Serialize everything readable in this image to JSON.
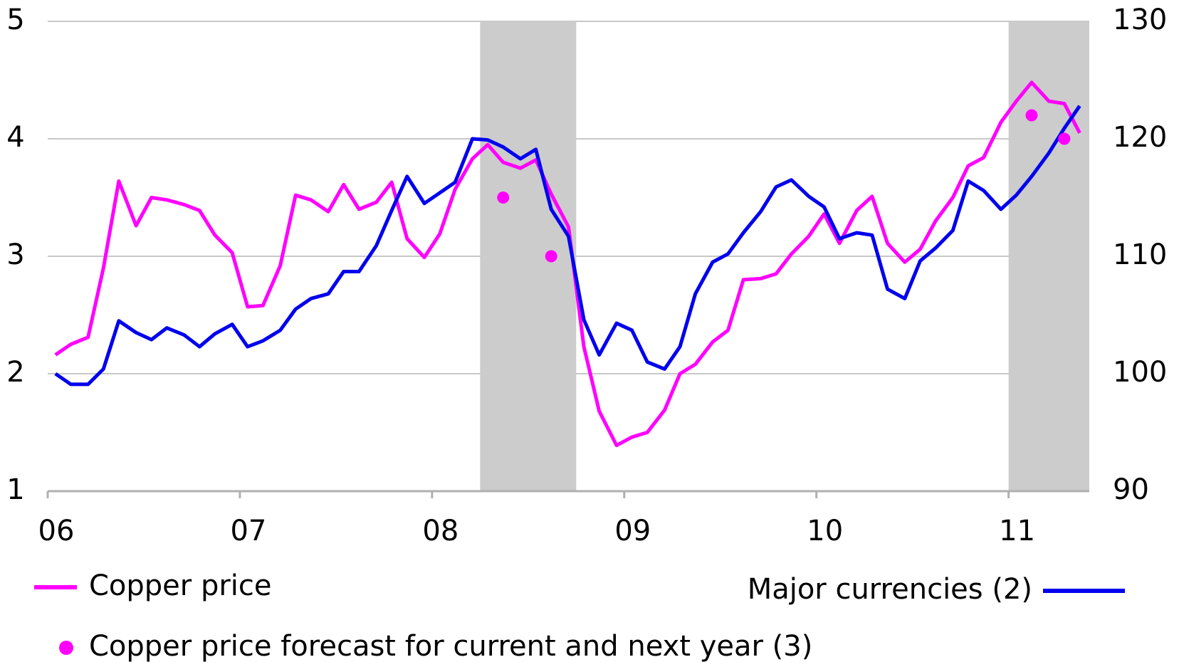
{
  "chart_data": {
    "type": "line",
    "x": [
      6.04,
      6.12,
      6.21,
      6.29,
      6.37,
      6.46,
      6.54,
      6.62,
      6.71,
      6.79,
      6.87,
      6.96,
      7.04,
      7.12,
      7.21,
      7.29,
      7.37,
      7.46,
      7.54,
      7.62,
      7.71,
      7.79,
      7.87,
      7.96,
      8.04,
      8.12,
      8.21,
      8.29,
      8.37,
      8.46,
      8.54,
      8.62,
      8.71,
      8.79,
      8.87,
      8.96,
      9.04,
      9.12,
      9.21,
      9.29,
      9.37,
      9.46,
      9.54,
      9.62,
      9.71,
      9.79,
      9.87,
      9.96,
      10.04,
      10.12,
      10.21,
      10.29,
      10.37,
      10.46,
      10.54,
      10.62,
      10.71,
      10.79,
      10.87,
      10.96,
      11.04,
      11.12,
      11.21,
      11.29,
      11.37
    ],
    "series": [
      {
        "name": "Copper price",
        "color": "#ff00ff",
        "values": [
          2.16,
          2.25,
          2.31,
          2.9,
          3.64,
          3.26,
          3.5,
          3.48,
          3.44,
          3.39,
          3.18,
          3.03,
          2.57,
          2.58,
          2.92,
          3.52,
          3.48,
          3.38,
          3.61,
          3.4,
          3.46,
          3.63,
          3.15,
          2.99,
          3.19,
          3.57,
          3.83,
          3.95,
          3.8,
          3.75,
          3.82,
          3.53,
          3.25,
          2.23,
          1.68,
          1.39,
          1.46,
          1.5,
          1.69,
          2.0,
          2.08,
          2.27,
          2.37,
          2.8,
          2.81,
          2.85,
          3.02,
          3.17,
          3.36,
          3.11,
          3.39,
          3.51,
          3.11,
          2.95,
          3.06,
          3.3,
          3.5,
          3.77,
          3.84,
          4.14,
          4.32,
          4.48,
          4.32,
          4.3,
          4.05
        ]
      },
      {
        "name": "Major currencies (2)",
        "color": "#0000ee",
        "axis": "y2",
        "values": [
          100.0,
          99.1,
          99.1,
          100.4,
          104.5,
          103.5,
          102.9,
          103.9,
          103.3,
          102.3,
          103.4,
          104.2,
          102.3,
          102.8,
          103.7,
          105.5,
          106.4,
          106.8,
          108.7,
          108.7,
          110.9,
          113.9,
          116.8,
          114.5,
          115.4,
          116.3,
          120.0,
          119.9,
          119.3,
          118.3,
          119.1,
          114.0,
          111.7,
          104.6,
          101.6,
          104.3,
          103.7,
          101.0,
          100.4,
          102.3,
          106.8,
          109.5,
          110.2,
          112.0,
          113.8,
          115.9,
          116.5,
          115.1,
          114.2,
          111.5,
          112.0,
          111.8,
          107.2,
          106.4,
          109.6,
          110.7,
          112.2,
          116.4,
          115.6,
          114.0,
          115.2,
          116.8,
          118.8,
          120.9,
          122.8
        ]
      },
      {
        "name": "Copper price forecast for current and next year (3)",
        "color": "#ff00ff",
        "type": "scatter",
        "x": [
          8.37,
          8.62,
          11.12,
          11.29
        ],
        "values": [
          3.5,
          3.0,
          4.2,
          4.0
        ]
      }
    ],
    "shaded_ranges": [
      [
        8.25,
        8.75
      ],
      [
        11.0,
        11.42
      ]
    ],
    "xlim": [
      6,
      11.42
    ],
    "xticks": [
      {
        "value": 6,
        "label": "06"
      },
      {
        "value": 7,
        "label": "07"
      },
      {
        "value": 8,
        "label": "08"
      },
      {
        "value": 9,
        "label": "09"
      },
      {
        "value": 10,
        "label": "10"
      },
      {
        "value": 11,
        "label": "11"
      }
    ],
    "ylim": [
      1,
      5
    ],
    "yticks": [
      1,
      2,
      3,
      4,
      5
    ],
    "y2lim": [
      90,
      130
    ],
    "y2ticks": [
      90,
      100,
      110,
      120,
      130
    ],
    "grid": true
  }
}
